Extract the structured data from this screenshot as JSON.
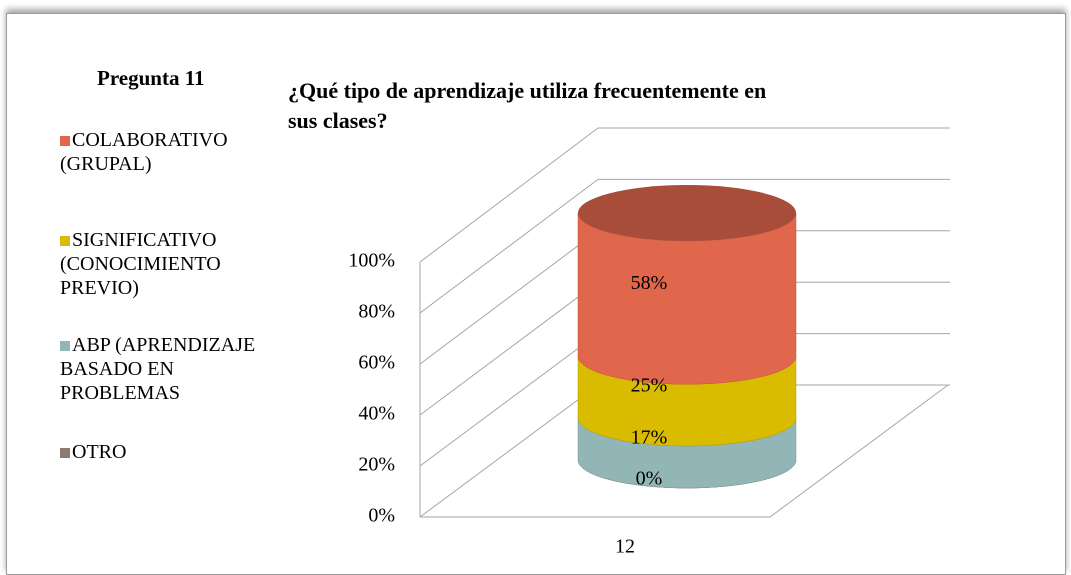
{
  "chart_data": {
    "type": "cylinder3d_stacked",
    "heading": "Pregunta 11",
    "title": "¿Qué tipo de aprendizaje utiliza frecuentemente en sus clases?",
    "categories": [
      "12"
    ],
    "series": [
      {
        "name": "OTRO",
        "color": "#8c7b70",
        "values": [
          0
        ],
        "value_labels": [
          "0%"
        ]
      },
      {
        "name": "ABP (APRENDIZAJE BASADO EN PROBLEMAS",
        "color": "#92b6b5",
        "values": [
          17
        ],
        "value_labels": [
          "17%"
        ]
      },
      {
        "name": "SIGNIFICATIVO (CONOCIMIENTO PREVIO)",
        "color": "#d9bb00",
        "values": [
          25
        ],
        "value_labels": [
          "25%"
        ]
      },
      {
        "name": "COLABORATIVO (GRUPAL)",
        "color": "#e0674c",
        "values": [
          58
        ],
        "value_labels": [
          "58%"
        ]
      }
    ],
    "ylim": [
      0,
      100
    ],
    "yticks": [
      {
        "value": 0,
        "label": "0%"
      },
      {
        "value": 20,
        "label": "20%"
      },
      {
        "value": 40,
        "label": "40%"
      },
      {
        "value": 60,
        "label": "60%"
      },
      {
        "value": 80,
        "label": "80%"
      },
      {
        "value": 100,
        "label": "100%"
      }
    ],
    "grid": true
  }
}
